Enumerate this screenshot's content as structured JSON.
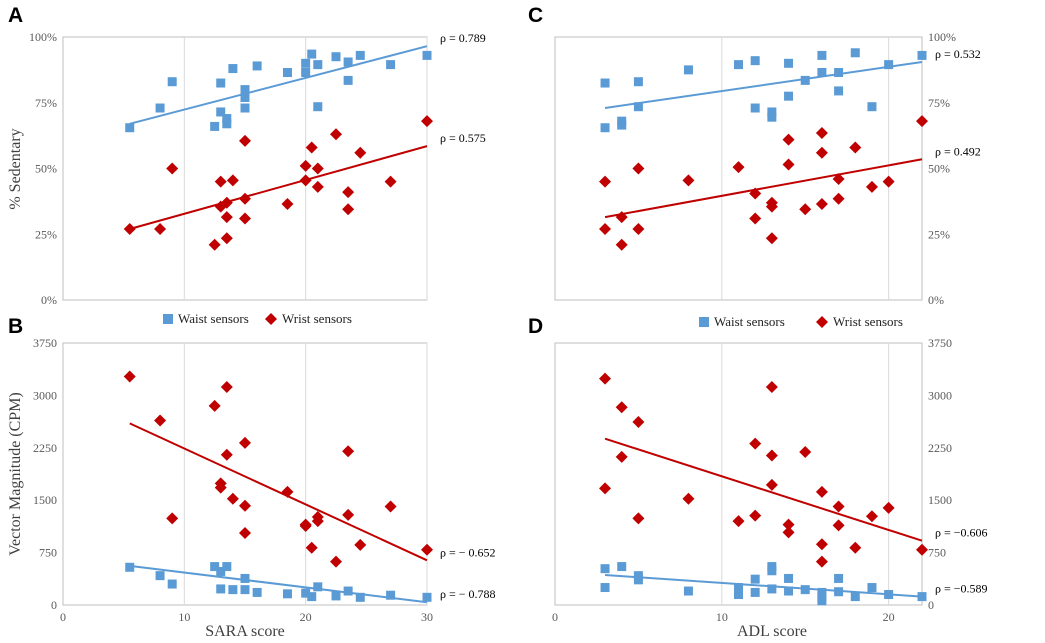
{
  "legend": {
    "waist_label": "Waist sensors",
    "wrist_label": "Wrist sensors"
  },
  "colors": {
    "waist": "#5B9BD5",
    "wrist": "#C00000",
    "grid": "#D9D9D9",
    "axis": "#BFBFBF"
  },
  "chart_data": [
    {
      "panel": "A",
      "type": "scatter",
      "xlabel": "",
      "ylabel": "% Sedentary",
      "xlim": [
        0,
        30
      ],
      "ylim": [
        0,
        100
      ],
      "x_gridlines": [
        10,
        20,
        30
      ],
      "yticks": [
        0,
        25,
        50,
        75,
        100
      ],
      "ytick_labels": [
        "0%",
        "25%",
        "50%",
        "75%",
        "100%"
      ],
      "xtick_labels": [],
      "ytick_side": "left",
      "series": [
        {
          "name": "Waist sensors",
          "shape": "square",
          "correlation": "ρ = 0.789",
          "trend": [
            [
              5.5,
              67
            ],
            [
              30,
              96.5
            ]
          ],
          "points": [
            [
              5.5,
              65.5
            ],
            [
              8,
              73
            ],
            [
              9,
              83
            ],
            [
              12.5,
              66
            ],
            [
              13,
              71.5
            ],
            [
              13,
              82.5
            ],
            [
              13.5,
              69
            ],
            [
              13.5,
              67
            ],
            [
              14,
              88
            ],
            [
              15,
              80
            ],
            [
              15,
              77
            ],
            [
              15,
              73
            ],
            [
              16,
              89
            ],
            [
              18.5,
              86.5
            ],
            [
              20,
              86.5
            ],
            [
              20,
              90
            ],
            [
              20.5,
              93.5
            ],
            [
              21,
              89.5
            ],
            [
              21,
              73.5
            ],
            [
              22.5,
              92.5
            ],
            [
              23.5,
              90.5
            ],
            [
              23.5,
              83.5
            ],
            [
              24.5,
              93
            ],
            [
              27,
              89.5
            ],
            [
              30,
              93
            ]
          ]
        },
        {
          "name": "Wrist sensors",
          "shape": "diamond",
          "correlation": "ρ = 0.575",
          "trend": [
            [
              5.5,
              27
            ],
            [
              30,
              58.5
            ]
          ],
          "points": [
            [
              5.5,
              27
            ],
            [
              8,
              27
            ],
            [
              9,
              50
            ],
            [
              12.5,
              21
            ],
            [
              13,
              45
            ],
            [
              13,
              35.5
            ],
            [
              13.5,
              37
            ],
            [
              13.5,
              31.5
            ],
            [
              13.5,
              23.5
            ],
            [
              14,
              45.5
            ],
            [
              15,
              60.5
            ],
            [
              15,
              38.5
            ],
            [
              15,
              31
            ],
            [
              18.5,
              36.5
            ],
            [
              20,
              51
            ],
            [
              20,
              45.5
            ],
            [
              20.5,
              58
            ],
            [
              21,
              50
            ],
            [
              21,
              43
            ],
            [
              22.5,
              63
            ],
            [
              23.5,
              41
            ],
            [
              23.5,
              34.5
            ],
            [
              24.5,
              56
            ],
            [
              27,
              45
            ],
            [
              30,
              68
            ]
          ]
        }
      ]
    },
    {
      "panel": "B",
      "type": "scatter",
      "xlabel": "SARA score",
      "ylabel": "Vector Magnitude (CPM)",
      "xlim": [
        0,
        30
      ],
      "ylim": [
        0,
        3750
      ],
      "x_gridlines": [
        10,
        20,
        30
      ],
      "xticks": [
        0,
        10,
        20,
        30
      ],
      "xtick_labels": [
        "0",
        "10",
        "20",
        "30"
      ],
      "yticks": [
        0,
        750,
        1500,
        2250,
        3000,
        3750
      ],
      "ytick_labels": [
        "0",
        "750",
        "1500",
        "2250",
        "3000",
        "3750"
      ],
      "ytick_side": "left",
      "series": [
        {
          "name": "Waist sensors",
          "shape": "square",
          "correlation": "ρ = − 0.788",
          "trend": [
            [
              5.5,
              560
            ],
            [
              30,
              40
            ]
          ],
          "points": [
            [
              5.5,
              540
            ],
            [
              8,
              420
            ],
            [
              9,
              300
            ],
            [
              12.5,
              550
            ],
            [
              13,
              480
            ],
            [
              13,
              230
            ],
            [
              13.5,
              550
            ],
            [
              14,
              220
            ],
            [
              15,
              380
            ],
            [
              15,
              220
            ],
            [
              16,
              180
            ],
            [
              18.5,
              160
            ],
            [
              20,
              170
            ],
            [
              20.5,
              120
            ],
            [
              21,
              260
            ],
            [
              22.5,
              130
            ],
            [
              23.5,
              200
            ],
            [
              24.5,
              110
            ],
            [
              27,
              140
            ],
            [
              30,
              110
            ]
          ]
        },
        {
          "name": "Wrist sensors",
          "shape": "diamond",
          "correlation": "ρ = − 0.652",
          "trend": [
            [
              5.5,
              2600
            ],
            [
              30,
              640
            ]
          ],
          "points": [
            [
              5.5,
              3270
            ],
            [
              8,
              2640
            ],
            [
              9,
              1240
            ],
            [
              12.5,
              2850
            ],
            [
              13,
              1740
            ],
            [
              13,
              1680
            ],
            [
              13.5,
              3120
            ],
            [
              13.5,
              2150
            ],
            [
              14,
              1520
            ],
            [
              15,
              2320
            ],
            [
              15,
              1420
            ],
            [
              15,
              1030
            ],
            [
              18.5,
              1620
            ],
            [
              20,
              1150
            ],
            [
              20,
              1130
            ],
            [
              20.5,
              820
            ],
            [
              21,
              1260
            ],
            [
              21,
              1200
            ],
            [
              22.5,
              620
            ],
            [
              23.5,
              2200
            ],
            [
              23.5,
              1290
            ],
            [
              24.5,
              860
            ],
            [
              27,
              1410
            ],
            [
              30,
              790
            ]
          ]
        }
      ]
    },
    {
      "panel": "C",
      "type": "scatter",
      "xlabel": "",
      "ylabel": "",
      "xlim": [
        0,
        22
      ],
      "ylim": [
        0,
        100
      ],
      "x_gridlines": [
        10,
        20
      ],
      "yticks": [
        0,
        25,
        50,
        75,
        100
      ],
      "ytick_labels": [
        "0%",
        "25%",
        "50%",
        "75%",
        "100%"
      ],
      "xtick_labels": [],
      "ytick_side": "right",
      "series": [
        {
          "name": "Waist sensors",
          "shape": "square",
          "correlation": "ρ = 0.532",
          "trend": [
            [
              3,
              73
            ],
            [
              22,
              90.5
            ]
          ],
          "points": [
            [
              3,
              82.5
            ],
            [
              3,
              65.5
            ],
            [
              4,
              68
            ],
            [
              4,
              66.5
            ],
            [
              5,
              83
            ],
            [
              5,
              73.5
            ],
            [
              8,
              87.5
            ],
            [
              11,
              89.5
            ],
            [
              12,
              91
            ],
            [
              12,
              73
            ],
            [
              13,
              71.5
            ],
            [
              13,
              69.5
            ],
            [
              14,
              90
            ],
            [
              14,
              77.5
            ],
            [
              15,
              83.5
            ],
            [
              16,
              93
            ],
            [
              16,
              86.5
            ],
            [
              17,
              86.5
            ],
            [
              17,
              79.5
            ],
            [
              18,
              94
            ],
            [
              19,
              73.5
            ],
            [
              20,
              89.5
            ],
            [
              22,
              93
            ]
          ]
        },
        {
          "name": "Wrist sensors",
          "shape": "diamond",
          "correlation": "ρ = 0.492",
          "trend": [
            [
              3,
              31.5
            ],
            [
              22,
              53.5
            ]
          ],
          "points": [
            [
              3,
              45
            ],
            [
              3,
              27
            ],
            [
              4,
              31.5
            ],
            [
              4,
              21
            ],
            [
              5,
              50
            ],
            [
              5,
              27
            ],
            [
              8,
              45.5
            ],
            [
              11,
              50.5
            ],
            [
              12,
              40.5
            ],
            [
              12,
              31
            ],
            [
              13,
              37
            ],
            [
              13,
              35.5
            ],
            [
              13,
              23.5
            ],
            [
              14,
              61
            ],
            [
              14,
              51.5
            ],
            [
              15,
              34.5
            ],
            [
              16,
              63.5
            ],
            [
              16,
              56
            ],
            [
              16,
              36.5
            ],
            [
              17,
              46
            ],
            [
              17,
              38.5
            ],
            [
              18,
              58
            ],
            [
              19,
              43
            ],
            [
              20,
              45
            ],
            [
              22,
              68
            ]
          ]
        }
      ]
    },
    {
      "panel": "D",
      "type": "scatter",
      "xlabel": "ADL score",
      "ylabel": "",
      "xlim": [
        0,
        22
      ],
      "ylim": [
        0,
        3750
      ],
      "x_gridlines": [
        10,
        20
      ],
      "xticks": [
        0,
        10,
        20
      ],
      "xtick_labels": [
        "0",
        "10",
        "20"
      ],
      "yticks": [
        0,
        750,
        1500,
        2250,
        3000,
        3750
      ],
      "ytick_labels": [
        "0",
        "750",
        "1500",
        "2250",
        "3000",
        "3750"
      ],
      "ytick_side": "right",
      "series": [
        {
          "name": "Waist sensors",
          "shape": "square",
          "correlation": "ρ = −0.589",
          "trend": [
            [
              3,
              430
            ],
            [
              22,
              120
            ]
          ],
          "points": [
            [
              3,
              520
            ],
            [
              3,
              250
            ],
            [
              4,
              550
            ],
            [
              5,
              420
            ],
            [
              5,
              360
            ],
            [
              8,
              200
            ],
            [
              11,
              250
            ],
            [
              11,
              150
            ],
            [
              12,
              370
            ],
            [
              12,
              180
            ],
            [
              13,
              550
            ],
            [
              13,
              490
            ],
            [
              13,
              230
            ],
            [
              14,
              380
            ],
            [
              14,
              200
            ],
            [
              15,
              220
            ],
            [
              16,
              180
            ],
            [
              16,
              120
            ],
            [
              16,
              60
            ],
            [
              17,
              380
            ],
            [
              17,
              190
            ],
            [
              18,
              120
            ],
            [
              19,
              250
            ],
            [
              20,
              150
            ],
            [
              22,
              120
            ]
          ]
        },
        {
          "name": "Wrist sensors",
          "shape": "diamond",
          "correlation": "ρ = −0.606",
          "trend": [
            [
              3,
              2380
            ],
            [
              22,
              920
            ]
          ],
          "points": [
            [
              3,
              3240
            ],
            [
              3,
              1670
            ],
            [
              4,
              2830
            ],
            [
              4,
              2120
            ],
            [
              5,
              2620
            ],
            [
              5,
              1240
            ],
            [
              8,
              1520
            ],
            [
              11,
              1200
            ],
            [
              12,
              2310
            ],
            [
              12,
              1280
            ],
            [
              13,
              3120
            ],
            [
              13,
              2140
            ],
            [
              13,
              1720
            ],
            [
              14,
              1150
            ],
            [
              14,
              1040
            ],
            [
              15,
              2190
            ],
            [
              16,
              1620
            ],
            [
              16,
              870
            ],
            [
              16,
              620
            ],
            [
              17,
              1410
            ],
            [
              17,
              1140
            ],
            [
              18,
              820
            ],
            [
              19,
              1270
            ],
            [
              20,
              1390
            ],
            [
              22,
              790
            ]
          ]
        }
      ]
    }
  ]
}
